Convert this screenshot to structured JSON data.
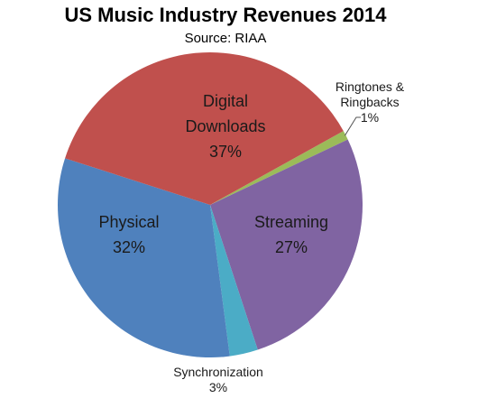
{
  "chart_data": {
    "type": "pie",
    "title": "US Music Industry Revenues 2014",
    "subtitle": "Source: RIAA",
    "slices": [
      {
        "name": "Ringtones & Ringbacks",
        "name_lines": [
          "Ringtones &",
          "Ringbacks"
        ],
        "value": 1,
        "pct_label": "1%",
        "color": "#9BBB59"
      },
      {
        "name": "Streaming",
        "name_lines": [
          "Streaming"
        ],
        "value": 27,
        "pct_label": "27%",
        "color": "#8064A2"
      },
      {
        "name": "Synchronization",
        "name_lines": [
          "Synchronization"
        ],
        "value": 3,
        "pct_label": "3%",
        "color": "#4BACC6"
      },
      {
        "name": "Physical",
        "name_lines": [
          "Physical"
        ],
        "value": 32,
        "pct_label": "32%",
        "color": "#4F81BD"
      },
      {
        "name": "Digital Downloads",
        "name_lines": [
          "Digital",
          "Downloads"
        ],
        "value": 37,
        "pct_label": "37%",
        "color": "#C0504D"
      }
    ]
  }
}
